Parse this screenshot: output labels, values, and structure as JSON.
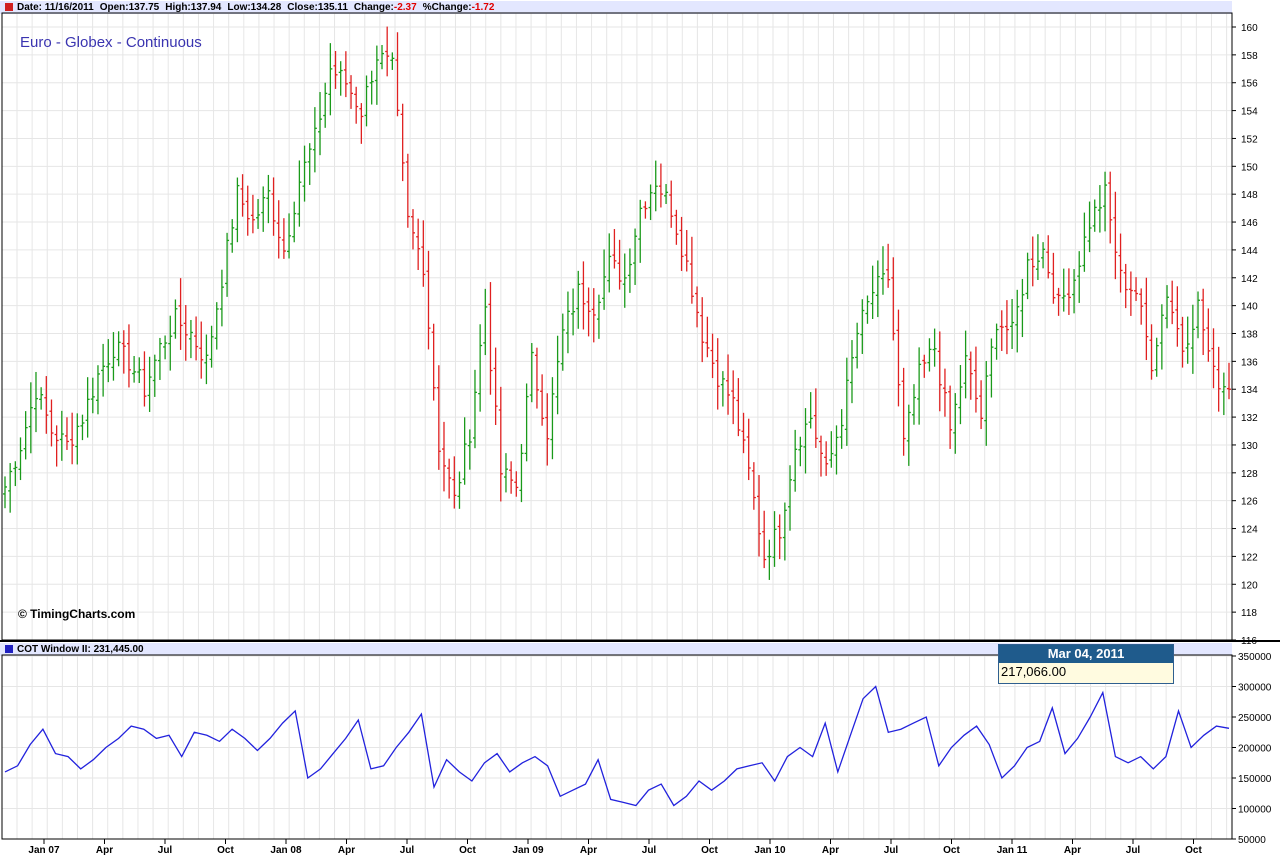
{
  "header": {
    "date_label": "Date: 11/16/2011",
    "open_label": "Open:137.75",
    "high_label": "High:137.94",
    "low_label": "Low:134.28",
    "close_label": "Close:135.11",
    "change_label": "Change:",
    "change_value": "-2.37",
    "pct_label": "%Change:",
    "pct_value": "-1.72"
  },
  "cot_header": {
    "label": "COT Window II: 231,445.00"
  },
  "tooltip": {
    "date": "Mar 04, 2011",
    "value": "217,066.00"
  },
  "chart_data": [
    {
      "type": "ohlc",
      "title": "Euro - Globex - Continuous",
      "annotation": "© TimingCharts.com",
      "ylim": [
        116,
        160
      ],
      "y_ticks": [
        116,
        118,
        120,
        122,
        124,
        126,
        128,
        130,
        132,
        134,
        136,
        138,
        140,
        142,
        144,
        146,
        148,
        150,
        152,
        154,
        156,
        158,
        160
      ],
      "x_ticks": [
        "Jan 07",
        "Apr",
        "Jul",
        "Oct",
        "Jan 08",
        "Apr",
        "Jul",
        "Oct",
        "Jan 09",
        "Apr",
        "Jul",
        "Oct",
        "Jan 10",
        "Apr",
        "Jul",
        "Oct",
        "Jan 11",
        "Apr",
        "Jul",
        "Oct"
      ],
      "up_color": "#1a9a1a",
      "down_color": "#e02020",
      "grid": true,
      "close_anchors": [
        127,
        130,
        134,
        131,
        130,
        132,
        135,
        137,
        136,
        134,
        137,
        139,
        138,
        136,
        142,
        148,
        146,
        148,
        144,
        149,
        152,
        157,
        156,
        154,
        158,
        157,
        146,
        143,
        130,
        126,
        131,
        140,
        128,
        127,
        136,
        131,
        138,
        141,
        140,
        143,
        142,
        147,
        149,
        147,
        143,
        138,
        135,
        133,
        128,
        122,
        124,
        130,
        132,
        128,
        132,
        138,
        141,
        142,
        130,
        135,
        137,
        131,
        136,
        132,
        139,
        138,
        143,
        144,
        140,
        142,
        146,
        148,
        142,
        141,
        136,
        141,
        137,
        140,
        135,
        134
      ],
      "bars_per_anchor": 3
    },
    {
      "type": "line",
      "title": "COT Window II",
      "series": [
        {
          "name": "COT Window II",
          "color": "#2222dd"
        }
      ],
      "ylim": [
        50000,
        350000
      ],
      "y_ticks": [
        50000,
        100000,
        150000,
        200000,
        250000,
        300000,
        350000
      ],
      "values": [
        160000,
        170000,
        205000,
        230000,
        190000,
        185000,
        165000,
        180000,
        200000,
        215000,
        235000,
        230000,
        215000,
        220000,
        185000,
        225000,
        220000,
        210000,
        230000,
        215000,
        195000,
        215000,
        240000,
        260000,
        150000,
        165000,
        190000,
        215000,
        245000,
        165000,
        170000,
        200000,
        225000,
        255000,
        135000,
        180000,
        160000,
        145000,
        175000,
        190000,
        160000,
        175000,
        185000,
        170000,
        120000,
        130000,
        140000,
        180000,
        115000,
        110000,
        105000,
        130000,
        140000,
        105000,
        120000,
        145000,
        130000,
        145000,
        165000,
        170000,
        175000,
        145000,
        185000,
        200000,
        185000,
        240000,
        160000,
        220000,
        280000,
        300000,
        225000,
        230000,
        240000,
        250000,
        170000,
        200000,
        220000,
        235000,
        205000,
        150000,
        170000,
        200000,
        210000,
        265000,
        190000,
        215000,
        250000,
        290000,
        185000,
        175000,
        185000,
        165000,
        185000,
        260000,
        200000,
        220000,
        235000,
        231445
      ]
    }
  ]
}
